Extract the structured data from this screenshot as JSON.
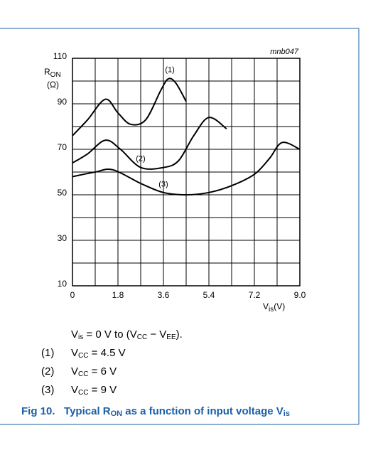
{
  "chart_data": {
    "type": "line",
    "figure_code": "mnb047",
    "y_label": {
      "main": "R",
      "sub": "ON",
      "unit": "(Ω)"
    },
    "x_label": {
      "main": "V",
      "sub": "is",
      "unit": "(V)"
    },
    "xlim": [
      0,
      9
    ],
    "ylim": [
      10,
      110
    ],
    "xticks": [
      0,
      1.8,
      3.6,
      5.4,
      7.2,
      {
        "value": 9,
        "label": "9.0"
      }
    ],
    "yticks": [
      110,
      90,
      70,
      50,
      30,
      10
    ],
    "x_minor_grid": [
      0.9,
      2.7,
      4.5,
      6.3,
      8.1
    ],
    "y_minor_grid": [
      100,
      80,
      60,
      40,
      20
    ],
    "grid": true,
    "series": [
      {
        "name": "(1)",
        "color": "#000000",
        "x": [
          0,
          0.6,
          1.3,
          1.8,
          2.3,
          2.9,
          3.5,
          3.8,
          4.1,
          4.5
        ],
        "values": [
          76,
          83,
          92,
          86,
          81,
          83,
          96,
          101,
          99,
          91
        ]
      },
      {
        "name": "(2)",
        "color": "#000000",
        "x": [
          0,
          0.6,
          1.3,
          1.9,
          2.7,
          3.6,
          4.2,
          4.8,
          5.4,
          6.1
        ],
        "values": [
          64,
          68,
          74,
          70,
          62,
          62,
          65,
          76,
          84,
          79
        ]
      },
      {
        "name": "(3)",
        "color": "#000000",
        "x": [
          0,
          0.9,
          1.6,
          2.7,
          3.6,
          4.5,
          5.4,
          6.3,
          7.2,
          7.8,
          8.3,
          9.0
        ],
        "values": [
          58,
          60,
          61,
          55,
          51,
          50,
          51,
          54,
          59,
          66,
          73,
          70
        ]
      }
    ]
  },
  "notes": {
    "condition": [
      "V",
      "is",
      " = 0 V to (V",
      "CC",
      " − V",
      "EE",
      ")."
    ],
    "items": [
      {
        "label": "(1)",
        "parts": [
          "V",
          "CC",
          " = 4.5 V"
        ]
      },
      {
        "label": "(2)",
        "parts": [
          "V",
          "CC",
          " = 6 V"
        ]
      },
      {
        "label": "(3)",
        "parts": [
          "V",
          "CC",
          " = 9 V"
        ]
      }
    ]
  },
  "caption": {
    "number": "Fig 10.",
    "parts": [
      "Typical R",
      "ON",
      " as a function of input voltage V",
      "is"
    ]
  }
}
